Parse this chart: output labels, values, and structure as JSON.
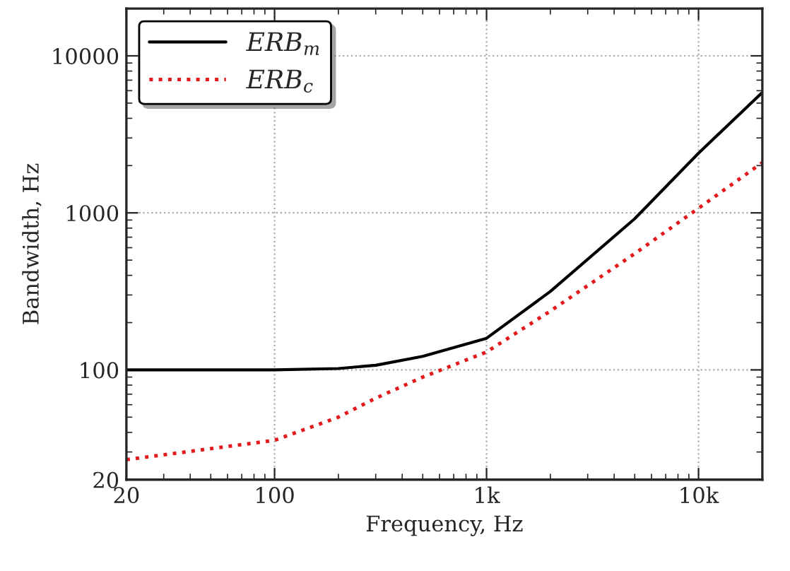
{
  "chart_data": {
    "type": "line",
    "xlabel": "Frequency, Hz",
    "ylabel": "Bandwidth, Hz",
    "x": [
      20,
      100,
      200,
      300,
      500,
      1000,
      2000,
      5000,
      10000,
      20000
    ],
    "series": [
      {
        "name": "ERB$_{m}$",
        "color": "#000000",
        "line_style": "solid",
        "values": [
          100,
          100,
          102,
          107,
          122,
          159,
          316,
          918,
          2400,
          5850
        ]
      },
      {
        "name": "ERB$_{c}$",
        "color": "#e31a1c",
        "line_style": "dotted",
        "values": [
          26.8,
          35.6,
          50,
          66,
          90,
          130,
          237,
          550,
          1070,
          2090
        ]
      }
    ],
    "log": "xy",
    "xlim": [
      20,
      20000
    ],
    "ylim": [
      20,
      20000
    ],
    "xticks": [
      20,
      100,
      {
        "value": 1000,
        "label": "1k"
      },
      {
        "value": 10000,
        "label": "10k"
      }
    ],
    "yticks": [
      20,
      100,
      1000,
      10000
    ],
    "grid": true,
    "legend": "top left"
  }
}
